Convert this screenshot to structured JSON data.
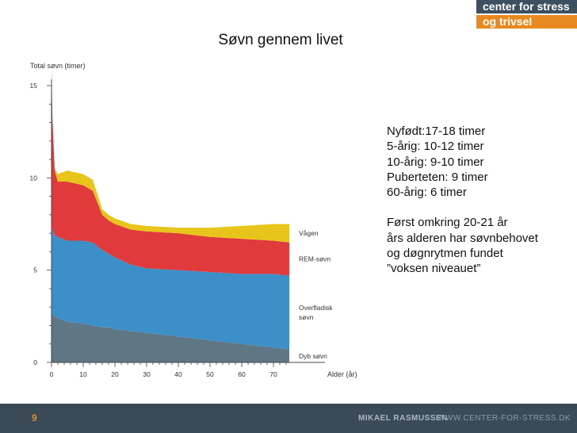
{
  "logo": {
    "line1": "center for stress",
    "line2": "og trivsel"
  },
  "title": "Søvn gennem livet",
  "chart_data": {
    "type": "area",
    "stacked": true,
    "ylabel": "Total søvn (timer)",
    "xlabel": "Alder (år)",
    "xlim": [
      0,
      85
    ],
    "ylim": [
      0,
      15
    ],
    "x_ticks": [
      0,
      10,
      20,
      30,
      40,
      50,
      60,
      70
    ],
    "y_ticks": [
      0,
      5,
      10,
      15
    ],
    "grid": false,
    "x": [
      0,
      0.3,
      1,
      2,
      5,
      10,
      13,
      16,
      18,
      20,
      25,
      30,
      40,
      50,
      60,
      70,
      75
    ],
    "series": [
      {
        "name": "Dyb søvn",
        "color": "#5f7685",
        "values": [
          2.6,
          2.6,
          2.5,
          2.4,
          2.2,
          2.1,
          2.0,
          1.9,
          1.9,
          1.8,
          1.7,
          1.6,
          1.4,
          1.2,
          1.0,
          0.8,
          0.7
        ]
      },
      {
        "name": "Overfladisk søvn",
        "color": "#3d8fc8",
        "values": [
          4.9,
          4.6,
          4.4,
          4.4,
          4.4,
          4.5,
          4.5,
          4.2,
          4.0,
          3.9,
          3.6,
          3.5,
          3.6,
          3.7,
          3.8,
          4.0,
          4.0
        ]
      },
      {
        "name": "REM-søvn",
        "color": "#e03a3c",
        "values": [
          8.5,
          6.0,
          3.5,
          3.0,
          3.2,
          3.0,
          2.8,
          1.9,
          1.8,
          1.8,
          1.9,
          2.0,
          2.0,
          1.9,
          1.9,
          1.8,
          1.8
        ]
      },
      {
        "name": "Vågen",
        "color": "#e8c51a",
        "values": [
          0.0,
          0.0,
          0.1,
          0.4,
          0.6,
          0.6,
          0.6,
          0.3,
          0.3,
          0.3,
          0.3,
          0.3,
          0.3,
          0.5,
          0.7,
          0.9,
          1.0
        ]
      }
    ]
  },
  "notes": [
    "Nyfødt:17-18 timer",
    "5-årig: 10-12 timer",
    "10-årig: 9-10 timer",
    "Puberteten: 9 timer",
    "60-årig: 6 timer",
    "",
    "Først omkring 20-21 år",
    "års alderen har søvnbehovet",
    "og døgnrytmen fundet",
    "”voksen niveauet”"
  ],
  "footer": {
    "page_number": "9",
    "author": "MIKAEL RASMUSSEN",
    "website": "WWW.CENTER-FOR-STRESS.DK"
  }
}
